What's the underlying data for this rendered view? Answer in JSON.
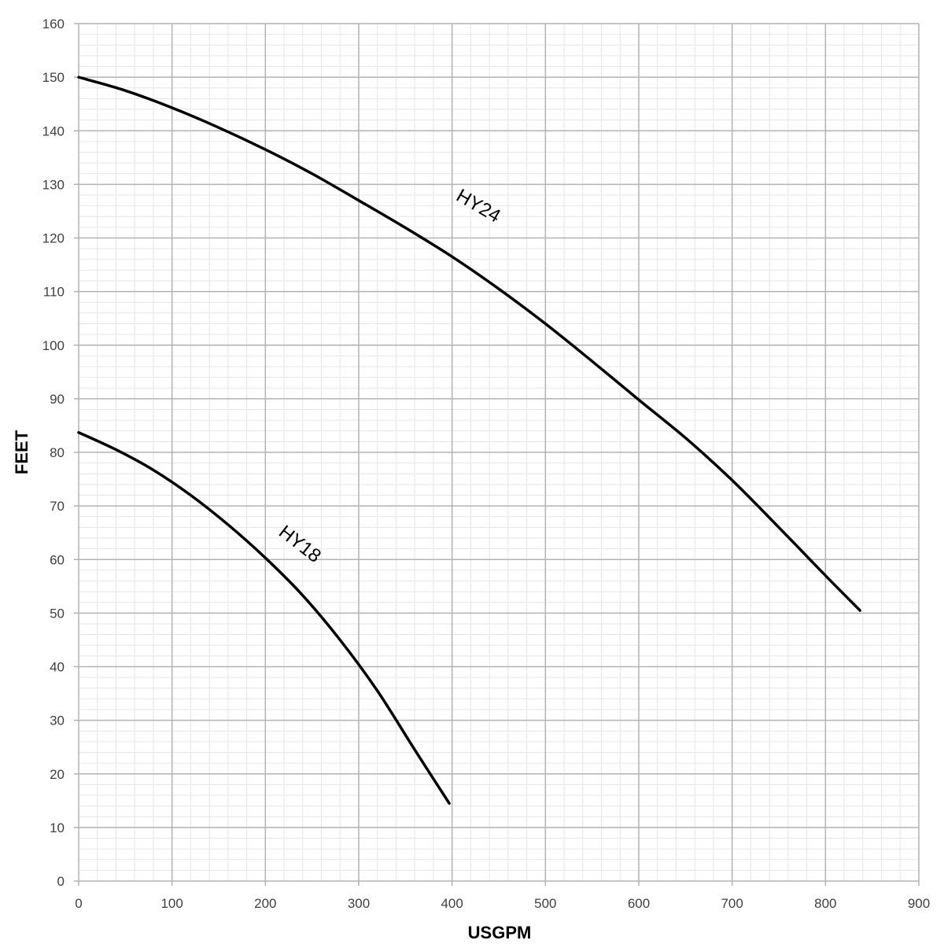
{
  "chart_data": {
    "type": "line",
    "xlabel": "USGPM",
    "ylabel": "FEET",
    "xlim": [
      0,
      900
    ],
    "ylim": [
      0,
      160
    ],
    "x_ticks": [
      "0",
      "100",
      "200",
      "300",
      "400",
      "500",
      "600",
      "700",
      "800",
      "900"
    ],
    "y_ticks": [
      "0",
      "10",
      "20",
      "30",
      "40",
      "50",
      "60",
      "70",
      "80",
      "90",
      "100",
      "110",
      "120",
      "130",
      "140",
      "150",
      "160"
    ],
    "grid": true,
    "legend": "none",
    "series": [
      {
        "name": "HY24",
        "color": "#000000",
        "x": [
          0,
          50,
          100,
          150,
          200,
          250,
          300,
          350,
          400,
          450,
          500,
          550,
          600,
          650,
          700,
          750,
          800,
          837
        ],
        "y": [
          150,
          147.5,
          144.3,
          140.6,
          136.5,
          132,
          127,
          121.9,
          116.5,
          110.5,
          104,
          97,
          89.8,
          82.7,
          74.8,
          66,
          57,
          50.5
        ]
      },
      {
        "name": "HY18",
        "color": "#000000",
        "x": [
          0,
          40,
          80,
          120,
          160,
          200,
          240,
          280,
          320,
          360,
          397
        ],
        "y": [
          83.7,
          80.5,
          76.7,
          72,
          66.5,
          60.3,
          53.3,
          45,
          35.5,
          24.5,
          14.5
        ]
      }
    ],
    "annotations": [
      {
        "text": "HY24",
        "x": 425,
        "y": 125,
        "rotation": 30
      },
      {
        "text": "HY18",
        "x": 233,
        "y": 62,
        "rotation": 38
      }
    ]
  }
}
